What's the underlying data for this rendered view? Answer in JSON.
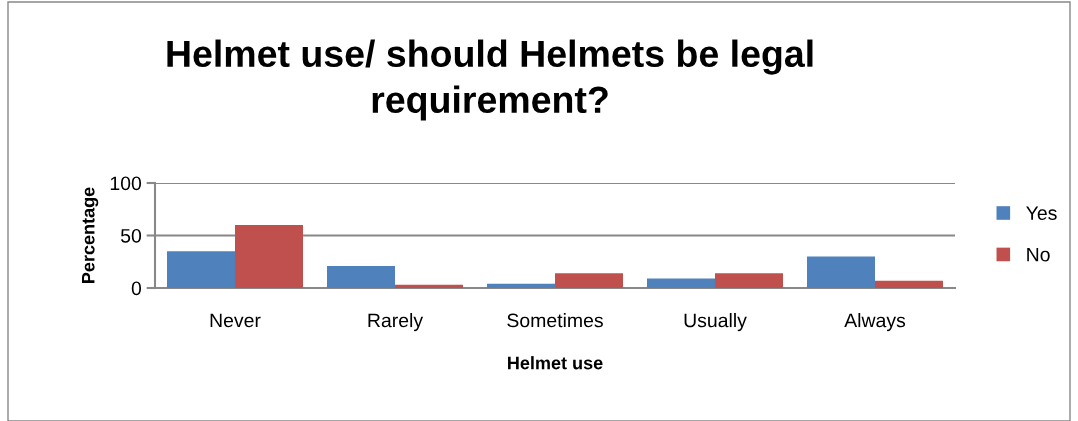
{
  "chart_data": {
    "type": "bar",
    "title": "Helmet use/ should Helmets be legal\nrequirement?",
    "xlabel": "Helmet use",
    "ylabel": "Percentage",
    "categories": [
      "Never",
      "Rarely",
      "Sometimes",
      "Usually",
      "Always"
    ],
    "series": [
      {
        "name": "Yes",
        "color": "#4f81bd",
        "values": [
          35,
          21,
          4,
          9,
          30
        ]
      },
      {
        "name": "No",
        "color": "#c0504d",
        "values": [
          60,
          3,
          14,
          14,
          7
        ]
      }
    ],
    "ylim": [
      0,
      100
    ],
    "yticks": [
      0,
      50,
      100
    ],
    "grid": "y",
    "legend": "right"
  }
}
